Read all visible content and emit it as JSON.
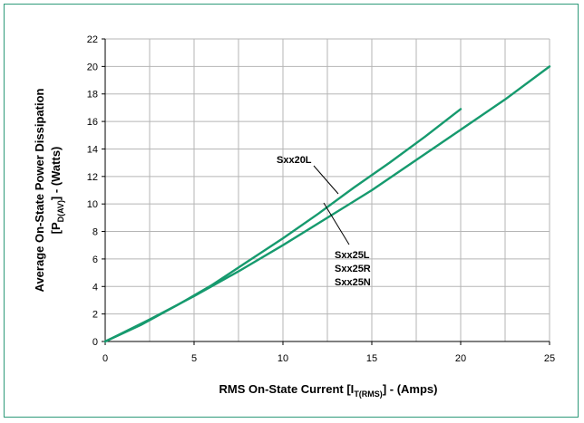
{
  "colors": {
    "frame": "#2e9a7a",
    "series": "#169a6e",
    "grid": "#b5b5b5",
    "axis": "#000000"
  },
  "chart_data": {
    "type": "line",
    "xlabel": {
      "pre": "RMS On-State Current [I",
      "sub": "T(RMS)",
      "post": "] - (Amps)"
    },
    "ylabel": {
      "line1": "Average On-State Power Dissipation",
      "line2_pre": "[P",
      "line2_sub": "D(AV)",
      "line2_post": "] - (Watts)"
    },
    "xlim": [
      0,
      25
    ],
    "ylim": [
      0,
      22
    ],
    "x_ticks": [
      0,
      5,
      10,
      15,
      20,
      25
    ],
    "y_ticks": [
      0,
      2,
      4,
      6,
      8,
      10,
      12,
      14,
      16,
      18,
      20,
      22
    ],
    "grid": true,
    "series": [
      {
        "name": "Sxx20L",
        "x": [
          0,
          2,
          4,
          6,
          8,
          10,
          12,
          14,
          16,
          18,
          20
        ],
        "y": [
          0,
          1.2,
          2.6,
          4.1,
          5.8,
          7.5,
          9.3,
          11.2,
          13.0,
          14.9,
          16.9
        ]
      },
      {
        "name": "Sxx25L / Sxx25R / Sxx25N",
        "x": [
          0,
          2.5,
          5,
          7.5,
          10,
          12.5,
          15,
          17.5,
          20,
          22.5,
          25
        ],
        "y": [
          0,
          1.6,
          3.3,
          5.1,
          7.0,
          9.0,
          11.0,
          13.2,
          15.4,
          17.6,
          20.0
        ]
      }
    ],
    "annotations": {
      "a1": "Sxx20L",
      "a2": "Sxx25L",
      "a3": "Sxx25R",
      "a4": "Sxx25N"
    }
  }
}
